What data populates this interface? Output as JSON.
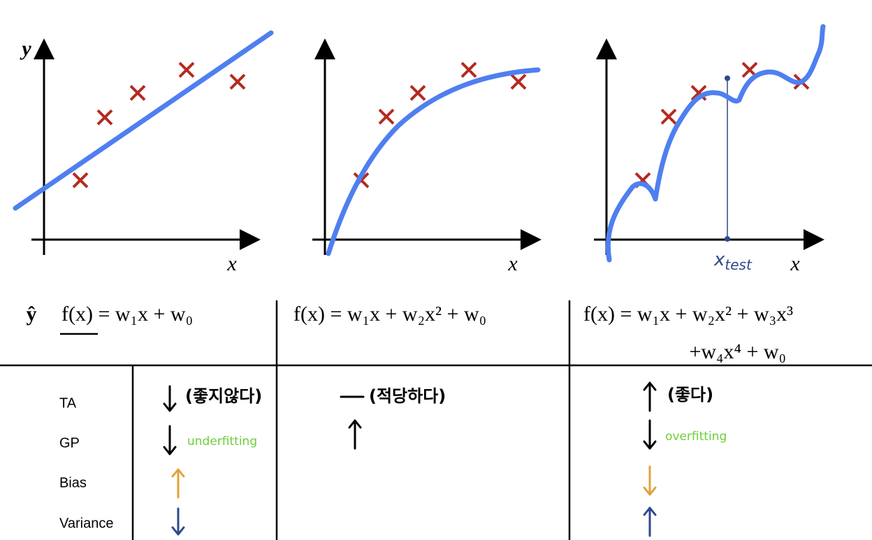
{
  "plots": [
    {
      "y_label": "y",
      "x_label": "x"
    },
    {
      "x_label": "x"
    },
    {
      "x_label": "x",
      "marker_label": "x",
      "marker_sub": "test"
    }
  ],
  "hat": "ŷ",
  "formulas": [
    "f(x) = w₁x + w₀",
    "f(x) = w₁x + w₂x² + w₀",
    "f(x) = w₁x + w₂x² + w₃x³",
    "+w₄x⁴ + w₀"
  ],
  "rows": [
    "TA",
    "GP",
    "Bias",
    "Variance"
  ],
  "notes": {
    "low": "(좋지않다)",
    "under": "underfitting",
    "mid": "(적당하다)",
    "high": "(좋다)",
    "over": "overfitting"
  }
}
